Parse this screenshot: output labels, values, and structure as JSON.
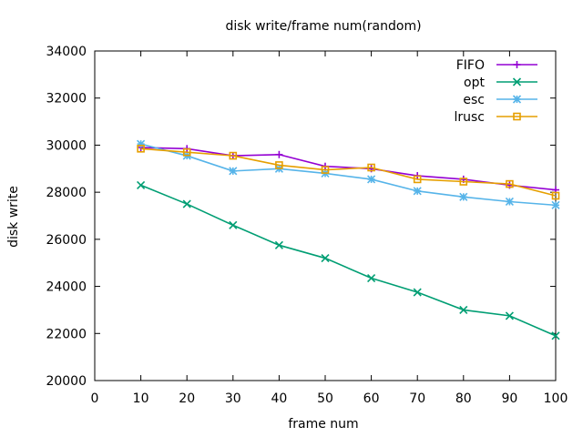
{
  "chart_data": {
    "type": "line",
    "title": "disk write/frame num(random)",
    "xlabel": "frame num",
    "ylabel": "disk write",
    "xlim": [
      0,
      100
    ],
    "ylim": [
      20000,
      34000
    ],
    "xticks": [
      0,
      10,
      20,
      30,
      40,
      50,
      60,
      70,
      80,
      90,
      100
    ],
    "yticks": [
      20000,
      22000,
      24000,
      26000,
      28000,
      30000,
      32000,
      34000
    ],
    "x": [
      10,
      20,
      30,
      40,
      50,
      60,
      70,
      80,
      90,
      100
    ],
    "legend_position": "top-right",
    "grid": false,
    "series": [
      {
        "name": "FIFO",
        "color": "#9400d3",
        "marker": "plus",
        "values": [
          29900,
          29850,
          29550,
          29600,
          29100,
          29000,
          28700,
          28550,
          28300,
          28100
        ]
      },
      {
        "name": "opt",
        "color": "#009e73",
        "marker": "x",
        "values": [
          28300,
          27500,
          26600,
          25750,
          25200,
          24350,
          23750,
          23000,
          22750,
          21900
        ]
      },
      {
        "name": "esc",
        "color": "#56b4e9",
        "marker": "star",
        "values": [
          30050,
          29550,
          28900,
          29000,
          28800,
          28550,
          28050,
          27800,
          27600,
          27450
        ]
      },
      {
        "name": "lrusc",
        "color": "#e69f00",
        "marker": "square",
        "values": [
          29850,
          29700,
          29550,
          29150,
          28950,
          29050,
          28550,
          28450,
          28350,
          27850
        ]
      }
    ]
  }
}
